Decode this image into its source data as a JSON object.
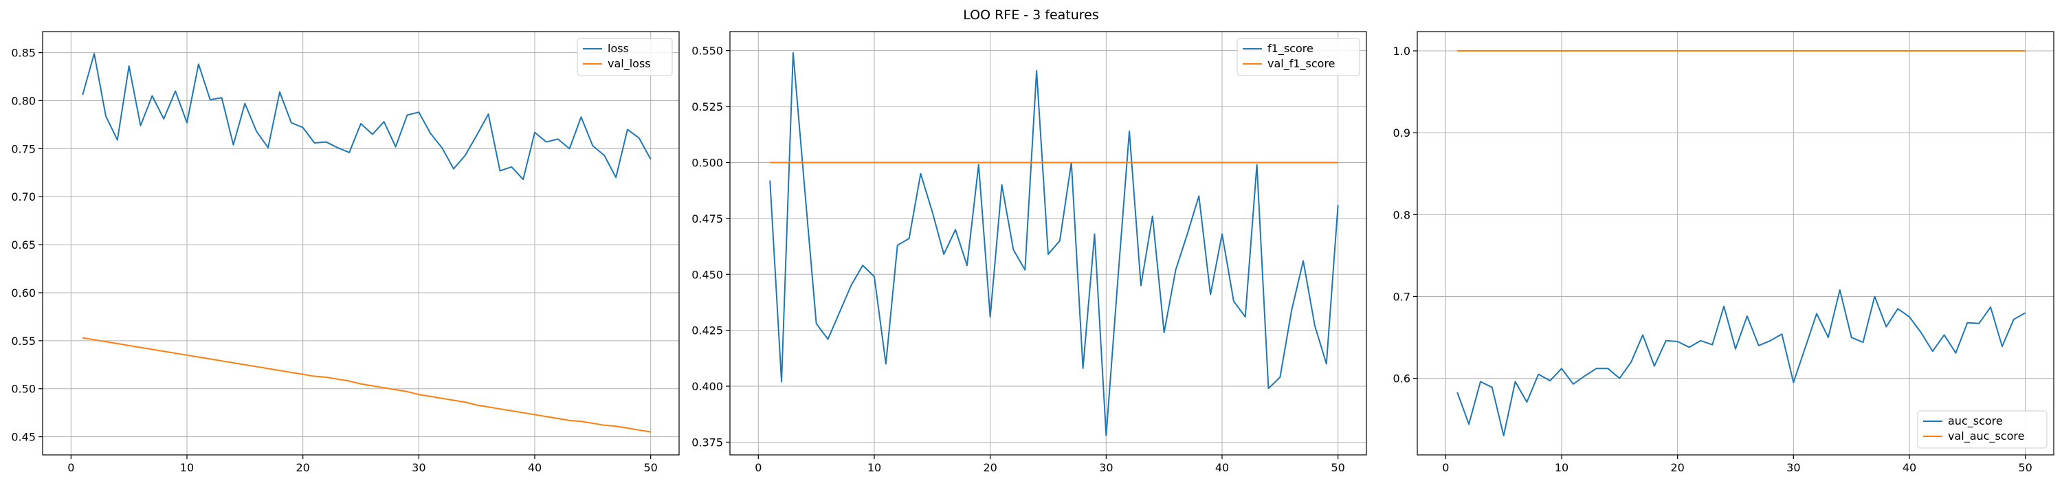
{
  "figure": {
    "title": "LOO RFE - 3 features"
  },
  "colors": {
    "series1": "#1f77b4",
    "series2": "#ff7f0e",
    "grid": "#b0b0b0",
    "axis": "#000000"
  },
  "chart_data": [
    {
      "type": "line",
      "title": "",
      "xlabel": "",
      "ylabel": "",
      "grid": true,
      "legend_position": "top-right",
      "xlim": [
        -2.45,
        52.45
      ],
      "ylim": [
        0.4311,
        0.8719
      ],
      "xticks": [
        0,
        10,
        20,
        30,
        40,
        50
      ],
      "yticks": [
        0.45,
        0.5,
        0.55,
        0.6,
        0.65,
        0.7,
        0.75,
        0.8,
        0.85
      ],
      "ytick_labels": [
        "0.45",
        "0.50",
        "0.55",
        "0.60",
        "0.65",
        "0.70",
        "0.75",
        "0.80",
        "0.85"
      ],
      "x": [
        1,
        2,
        3,
        4,
        5,
        6,
        7,
        8,
        9,
        10,
        11,
        12,
        13,
        14,
        15,
        16,
        17,
        18,
        19,
        20,
        21,
        22,
        23,
        24,
        25,
        26,
        27,
        28,
        29,
        30,
        31,
        32,
        33,
        34,
        35,
        36,
        37,
        38,
        39,
        40,
        41,
        42,
        43,
        44,
        45,
        46,
        47,
        48,
        49,
        50
      ],
      "series": [
        {
          "name": "loss",
          "values": [
            0.806,
            0.849,
            0.784,
            0.759,
            0.836,
            0.774,
            0.805,
            0.781,
            0.81,
            0.777,
            0.838,
            0.801,
            0.803,
            0.754,
            0.797,
            0.768,
            0.751,
            0.809,
            0.777,
            0.772,
            0.756,
            0.757,
            0.751,
            0.746,
            0.776,
            0.765,
            0.778,
            0.752,
            0.785,
            0.788,
            0.766,
            0.751,
            0.729,
            0.743,
            0.764,
            0.786,
            0.727,
            0.731,
            0.718,
            0.767,
            0.757,
            0.76,
            0.75,
            0.783,
            0.753,
            0.743,
            0.72,
            0.77,
            0.761,
            0.739
          ]
        },
        {
          "name": "val_loss",
          "values": [
            0.553,
            0.551,
            0.549,
            0.547,
            0.545,
            0.543,
            0.541,
            0.539,
            0.537,
            0.535,
            0.533,
            0.531,
            0.529,
            0.527,
            0.525,
            0.523,
            0.521,
            0.519,
            0.517,
            0.515,
            0.513,
            0.512,
            0.51,
            0.508,
            0.505,
            0.503,
            0.501,
            0.499,
            0.497,
            0.494,
            0.492,
            0.49,
            0.488,
            0.486,
            0.483,
            0.481,
            0.479,
            0.477,
            0.475,
            0.473,
            0.471,
            0.469,
            0.467,
            0.466,
            0.464,
            0.462,
            0.461,
            0.459,
            0.457,
            0.455
          ]
        }
      ]
    },
    {
      "type": "line",
      "title": "",
      "xlabel": "",
      "ylabel": "",
      "grid": true,
      "legend_position": "top-right",
      "xlim": [
        -2.45,
        52.45
      ],
      "ylim": [
        0.3693,
        0.5585
      ],
      "xticks": [
        0,
        10,
        20,
        30,
        40,
        50
      ],
      "yticks": [
        0.375,
        0.4,
        0.425,
        0.45,
        0.475,
        0.5,
        0.525,
        0.55
      ],
      "ytick_labels": [
        "0.375",
        "0.400",
        "0.425",
        "0.450",
        "0.475",
        "0.500",
        "0.525",
        "0.550"
      ],
      "x": [
        1,
        2,
        3,
        4,
        5,
        6,
        7,
        8,
        9,
        10,
        11,
        12,
        13,
        14,
        15,
        16,
        17,
        18,
        19,
        20,
        21,
        22,
        23,
        24,
        25,
        26,
        27,
        28,
        29,
        30,
        31,
        32,
        33,
        34,
        35,
        36,
        37,
        38,
        39,
        40,
        41,
        42,
        43,
        44,
        45,
        46,
        47,
        48,
        49,
        50
      ],
      "series": [
        {
          "name": "f1_score",
          "values": [
            0.492,
            0.402,
            0.549,
            0.488,
            0.428,
            0.421,
            0.433,
            0.445,
            0.454,
            0.449,
            0.41,
            0.463,
            0.466,
            0.495,
            0.478,
            0.459,
            0.47,
            0.454,
            0.499,
            0.431,
            0.49,
            0.461,
            0.452,
            0.541,
            0.459,
            0.465,
            0.5,
            0.408,
            0.468,
            0.378,
            0.447,
            0.514,
            0.445,
            0.476,
            0.424,
            0.452,
            0.468,
            0.485,
            0.441,
            0.468,
            0.438,
            0.431,
            0.499,
            0.399,
            0.404,
            0.434,
            0.456,
            0.427,
            0.41,
            0.481
          ]
        },
        {
          "name": "val_f1_score",
          "values": [
            0.5,
            0.5,
            0.5,
            0.5,
            0.5,
            0.5,
            0.5,
            0.5,
            0.5,
            0.5,
            0.5,
            0.5,
            0.5,
            0.5,
            0.5,
            0.5,
            0.5,
            0.5,
            0.5,
            0.5,
            0.5,
            0.5,
            0.5,
            0.5,
            0.5,
            0.5,
            0.5,
            0.5,
            0.5,
            0.5,
            0.5,
            0.5,
            0.5,
            0.5,
            0.5,
            0.5,
            0.5,
            0.5,
            0.5,
            0.5,
            0.5,
            0.5,
            0.5,
            0.5,
            0.5,
            0.5,
            0.5,
            0.5,
            0.5,
            0.5
          ]
        }
      ]
    },
    {
      "type": "line",
      "title": "",
      "xlabel": "",
      "ylabel": "",
      "grid": true,
      "legend_position": "bottom-right",
      "xlim": [
        -2.45,
        52.45
      ],
      "ylim": [
        0.5065,
        1.0235
      ],
      "xticks": [
        0,
        10,
        20,
        30,
        40,
        50
      ],
      "yticks": [
        0.6,
        0.7,
        0.8,
        0.9,
        1.0
      ],
      "ytick_labels": [
        "0.6",
        "0.7",
        "0.8",
        "0.9",
        "1.0"
      ],
      "x": [
        1,
        2,
        3,
        4,
        5,
        6,
        7,
        8,
        9,
        10,
        11,
        12,
        13,
        14,
        15,
        16,
        17,
        18,
        19,
        20,
        21,
        22,
        23,
        24,
        25,
        26,
        27,
        28,
        29,
        30,
        31,
        32,
        33,
        34,
        35,
        36,
        37,
        38,
        39,
        40,
        41,
        42,
        43,
        44,
        45,
        46,
        47,
        48,
        49,
        50
      ],
      "series": [
        {
          "name": "auc_score",
          "values": [
            0.583,
            0.544,
            0.596,
            0.589,
            0.53,
            0.596,
            0.571,
            0.605,
            0.597,
            0.612,
            0.593,
            0.603,
            0.612,
            0.612,
            0.6,
            0.62,
            0.653,
            0.615,
            0.646,
            0.645,
            0.638,
            0.646,
            0.641,
            0.688,
            0.636,
            0.676,
            0.64,
            0.646,
            0.654,
            0.595,
            0.637,
            0.679,
            0.65,
            0.708,
            0.65,
            0.644,
            0.7,
            0.663,
            0.685,
            0.675,
            0.656,
            0.633,
            0.653,
            0.631,
            0.668,
            0.667,
            0.687,
            0.639,
            0.672,
            0.68
          ]
        },
        {
          "name": "val_auc_score",
          "values": [
            1.0,
            1.0,
            1.0,
            1.0,
            1.0,
            1.0,
            1.0,
            1.0,
            1.0,
            1.0,
            1.0,
            1.0,
            1.0,
            1.0,
            1.0,
            1.0,
            1.0,
            1.0,
            1.0,
            1.0,
            1.0,
            1.0,
            1.0,
            1.0,
            1.0,
            1.0,
            1.0,
            1.0,
            1.0,
            1.0,
            1.0,
            1.0,
            1.0,
            1.0,
            1.0,
            1.0,
            1.0,
            1.0,
            1.0,
            1.0,
            1.0,
            1.0,
            1.0,
            1.0,
            1.0,
            1.0,
            1.0,
            1.0,
            1.0,
            1.0
          ]
        }
      ]
    }
  ]
}
